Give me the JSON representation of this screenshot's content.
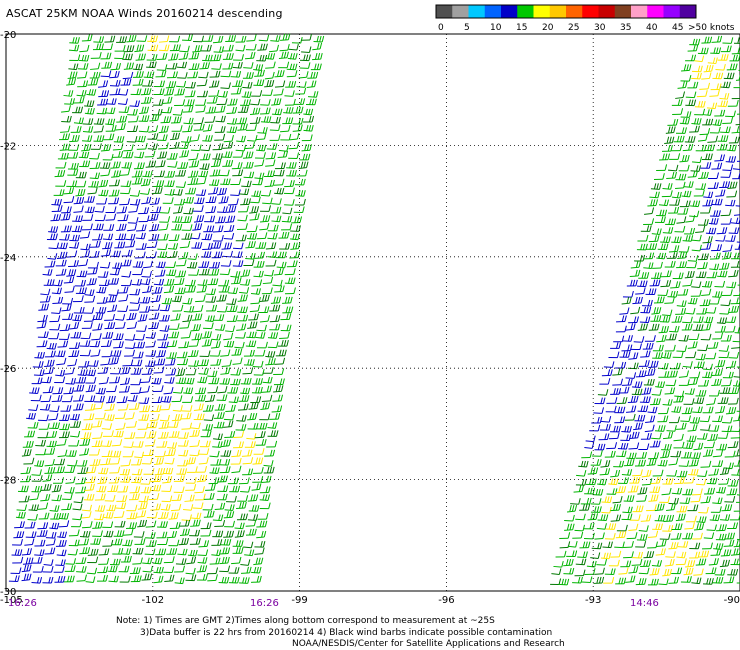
{
  "header": {
    "title": "ASCAT 25KM NOAA Winds 20160214 descending"
  },
  "legend": {
    "unit_label": ">50 knots",
    "ticks": [
      "0",
      "5",
      "10",
      "15",
      "20",
      "25",
      "30",
      "35",
      "40",
      "45"
    ],
    "colors": [
      "#505050",
      "#a0a0a0",
      "#00c8ff",
      "#0064ff",
      "#0000c8",
      "#00c800",
      "#ffff00",
      "#ffc800",
      "#ff6400",
      "#ff0000",
      "#c80000",
      "#804020",
      "#ffa0c8",
      "#ff00ff",
      "#9600ff",
      "#5000a0"
    ]
  },
  "map": {
    "lat_labels": [
      "-20",
      "-22",
      "-24",
      "-26",
      "-28",
      "-30"
    ],
    "lon_labels": [
      "-105",
      "-102",
      "-99",
      "-96",
      "-93",
      "-90"
    ],
    "lat_range": [
      -30,
      -20
    ],
    "lon_range": [
      -105,
      -90
    ],
    "wind_colors": {
      "blue": "#0000cc",
      "green": "#00b400",
      "yellow": "#ffe600",
      "darkgreen": "#007800"
    }
  },
  "times": {
    "left_swath_a": "16:26",
    "left_swath_b": "16:26",
    "right_swath": "14:46"
  },
  "notes": {
    "line1": "Note: 1) Times are GMT 2)Times along bottom correspond to measurement at ~25S",
    "line2": "3)Data buffer is 22 hrs from 20160214 4) Black wind barbs indicate possible contamination",
    "credit": "NOAA/NESDIS/Center for Satellite Applications and Research"
  }
}
